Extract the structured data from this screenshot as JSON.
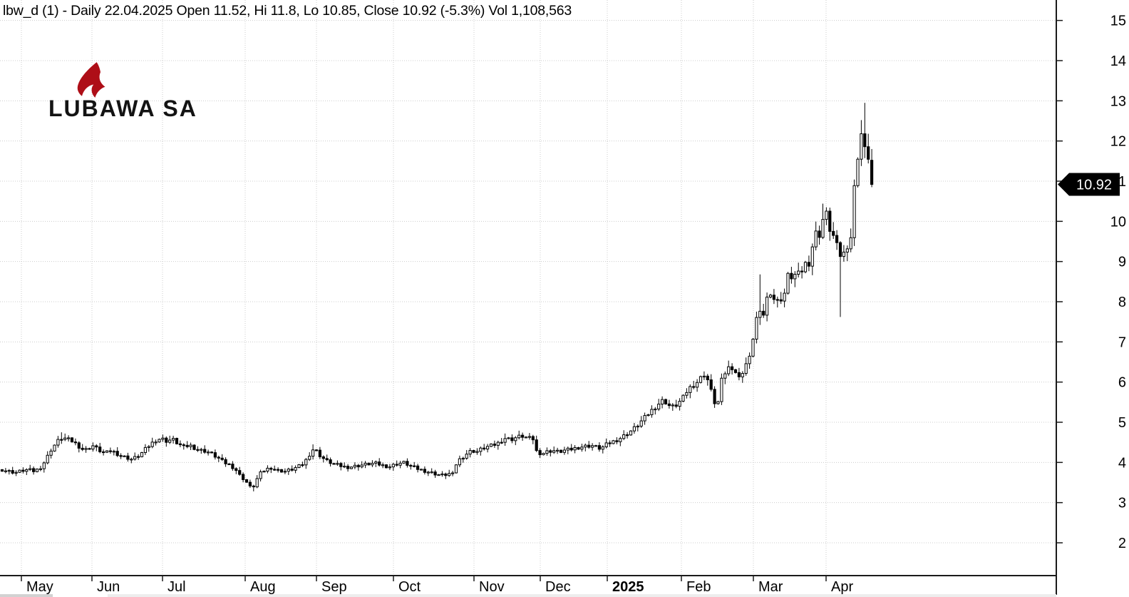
{
  "window": {
    "app": "stock-chart"
  },
  "logo": {
    "text": "LUBAWA SA",
    "icon": "flame-swoosh-icon",
    "icon_color": "#ae0e17",
    "text_color": "#131313"
  },
  "price_marker": {
    "value": "10.92",
    "bg": "#000000",
    "text_color": "#ffffff"
  },
  "chart_data": {
    "type": "candlestick",
    "title": "lbw_d (1) - Daily 22.04.2025 Open 11.52, Hi 11.8, Lo 10.85, Close 10.92 (-5.3%) Vol 1,108,563",
    "symbol": "lbw_d",
    "periodicity": "Daily",
    "last_quote": {
      "date": "22.04.2025",
      "open": 11.52,
      "high": 11.8,
      "low": 10.85,
      "close": 10.92,
      "change_pct": "-5.3%",
      "volume": "1,108,563"
    },
    "grid": "dotted",
    "grid_color": "#cccccc",
    "up_candle": {
      "fill": "#ffffff",
      "stroke": "#000000"
    },
    "down_candle": {
      "fill": "#000000",
      "stroke": "#000000"
    },
    "y_axis_side": "right",
    "y_ticks": [
      15,
      14,
      13,
      12,
      11,
      10,
      9,
      8,
      7,
      6,
      5,
      4,
      3,
      2
    ],
    "y_range": [
      1.25,
      15.5
    ],
    "x_ticks": [
      {
        "label": "May",
        "x": 30,
        "bold": false
      },
      {
        "label": "Jun",
        "x": 129,
        "bold": false
      },
      {
        "label": "Jul",
        "x": 228,
        "bold": false
      },
      {
        "label": "Aug",
        "x": 344,
        "bold": false
      },
      {
        "label": "Sep",
        "x": 444,
        "bold": false
      },
      {
        "label": "Oct",
        "x": 552,
        "bold": false
      },
      {
        "label": "Nov",
        "x": 665,
        "bold": false
      },
      {
        "label": "Dec",
        "x": 758,
        "bold": false
      },
      {
        "label": "2025",
        "x": 852,
        "bold": true
      },
      {
        "label": "Feb",
        "x": 956,
        "bold": false
      },
      {
        "label": "Mar",
        "x": 1057,
        "bold": false
      },
      {
        "label": "Apr",
        "x": 1159,
        "bold": false
      }
    ],
    "anchors": [
      [
        3,
        3.82
      ],
      [
        12,
        3.78
      ],
      [
        22,
        3.75
      ],
      [
        32,
        3.8
      ],
      [
        40,
        3.82
      ],
      [
        48,
        3.78
      ],
      [
        56,
        3.86
      ],
      [
        64,
        4.05
      ],
      [
        70,
        4.28
      ],
      [
        76,
        4.42
      ],
      [
        82,
        4.55
      ],
      [
        88,
        4.62
      ],
      [
        94,
        4.58
      ],
      [
        100,
        4.54
      ],
      [
        106,
        4.47
      ],
      [
        112,
        4.38
      ],
      [
        118,
        4.3
      ],
      [
        124,
        4.35
      ],
      [
        130,
        4.42
      ],
      [
        136,
        4.34
      ],
      [
        142,
        4.27
      ],
      [
        148,
        4.22
      ],
      [
        154,
        4.3
      ],
      [
        160,
        4.26
      ],
      [
        166,
        4.2
      ],
      [
        172,
        4.15
      ],
      [
        178,
        4.12
      ],
      [
        184,
        4.08
      ],
      [
        190,
        4.12
      ],
      [
        197,
        4.2
      ],
      [
        204,
        4.33
      ],
      [
        211,
        4.45
      ],
      [
        218,
        4.55
      ],
      [
        226,
        4.6
      ],
      [
        234,
        4.53
      ],
      [
        242,
        4.58
      ],
      [
        250,
        4.46
      ],
      [
        258,
        4.38
      ],
      [
        266,
        4.43
      ],
      [
        274,
        4.35
      ],
      [
        282,
        4.3
      ],
      [
        290,
        4.28
      ],
      [
        298,
        4.2
      ],
      [
        306,
        4.11
      ],
      [
        314,
        4.0
      ],
      [
        322,
        3.94
      ],
      [
        330,
        3.84
      ],
      [
        337,
        3.66
      ],
      [
        344,
        3.56
      ],
      [
        350,
        3.4
      ],
      [
        354,
        3.34
      ],
      [
        359,
        3.54
      ],
      [
        365,
        3.72
      ],
      [
        372,
        3.82
      ],
      [
        380,
        3.87
      ],
      [
        390,
        3.8
      ],
      [
        400,
        3.78
      ],
      [
        410,
        3.83
      ],
      [
        418,
        3.89
      ],
      [
        425,
        3.96
      ],
      [
        432,
        4.12
      ],
      [
        438,
        4.33
      ],
      [
        444,
        4.28
      ],
      [
        450,
        4.15
      ],
      [
        458,
        4.04
      ],
      [
        466,
        3.98
      ],
      [
        476,
        3.92
      ],
      [
        486,
        3.88
      ],
      [
        496,
        3.9
      ],
      [
        506,
        3.93
      ],
      [
        516,
        3.96
      ],
      [
        526,
        3.98
      ],
      [
        536,
        3.93
      ],
      [
        546,
        3.89
      ],
      [
        556,
        3.96
      ],
      [
        566,
        4.0
      ],
      [
        576,
        3.91
      ],
      [
        586,
        3.84
      ],
      [
        596,
        3.79
      ],
      [
        606,
        3.74
      ],
      [
        614,
        3.7
      ],
      [
        622,
        3.68
      ],
      [
        630,
        3.72
      ],
      [
        636,
        3.7
      ],
      [
        641,
        4.02
      ],
      [
        648,
        4.12
      ],
      [
        655,
        4.22
      ],
      [
        662,
        4.3
      ],
      [
        668,
        4.26
      ],
      [
        675,
        4.33
      ],
      [
        682,
        4.38
      ],
      [
        690,
        4.42
      ],
      [
        697,
        4.46
      ],
      [
        704,
        4.55
      ],
      [
        710,
        4.62
      ],
      [
        716,
        4.56
      ],
      [
        724,
        4.62
      ],
      [
        732,
        4.66
      ],
      [
        740,
        4.61
      ],
      [
        748,
        4.58
      ],
      [
        753,
        4.26
      ],
      [
        760,
        4.22
      ],
      [
        768,
        4.27
      ],
      [
        776,
        4.3
      ],
      [
        784,
        4.26
      ],
      [
        792,
        4.3
      ],
      [
        800,
        4.32
      ],
      [
        808,
        4.36
      ],
      [
        816,
        4.39
      ],
      [
        824,
        4.41
      ],
      [
        832,
        4.42
      ],
      [
        840,
        4.35
      ],
      [
        846,
        4.38
      ],
      [
        852,
        4.46
      ],
      [
        860,
        4.52
      ],
      [
        868,
        4.58
      ],
      [
        876,
        4.67
      ],
      [
        884,
        4.77
      ],
      [
        892,
        4.88
      ],
      [
        900,
        5.03
      ],
      [
        908,
        5.18
      ],
      [
        916,
        5.33
      ],
      [
        924,
        5.46
      ],
      [
        931,
        5.56
      ],
      [
        938,
        5.42
      ],
      [
        945,
        5.38
      ],
      [
        951,
        5.46
      ],
      [
        958,
        5.6
      ],
      [
        964,
        5.78
      ],
      [
        970,
        5.9
      ],
      [
        976,
        5.96
      ],
      [
        982,
        6.08
      ],
      [
        988,
        6.2
      ],
      [
        994,
        6.02
      ],
      [
        1000,
        5.62
      ],
      [
        1006,
        5.33
      ],
      [
        1012,
        6.02
      ],
      [
        1018,
        6.26
      ],
      [
        1025,
        6.42
      ],
      [
        1031,
        6.28
      ],
      [
        1037,
        6.09
      ],
      [
        1043,
        6.31
      ],
      [
        1049,
        6.55
      ],
      [
        1054,
        6.63
      ],
      [
        1058,
        7.4
      ],
      [
        1064,
        7.74
      ],
      [
        1070,
        7.6
      ],
      [
        1076,
        8.08
      ],
      [
        1082,
        8.28
      ],
      [
        1088,
        7.96
      ],
      [
        1094,
        8.05
      ],
      [
        1100,
        8.16
      ],
      [
        1106,
        8.68
      ],
      [
        1112,
        8.6
      ],
      [
        1118,
        8.72
      ],
      [
        1123,
        8.62
      ],
      [
        1128,
        9.0
      ],
      [
        1133,
        8.86
      ],
      [
        1138,
        9.16
      ],
      [
        1143,
        9.78
      ],
      [
        1148,
        9.55
      ],
      [
        1153,
        9.95
      ],
      [
        1158,
        10.28
      ],
      [
        1164,
        9.82
      ],
      [
        1169,
        9.64
      ],
      [
        1175,
        9.33
      ],
      [
        1180,
        9.12
      ],
      [
        1185,
        9.22
      ],
      [
        1189,
        9.42
      ],
      [
        1193,
        9.36
      ],
      [
        1197,
        10.8
      ],
      [
        1201,
        10.86
      ],
      [
        1206,
        12.42
      ],
      [
        1211,
        11.92
      ],
      [
        1216,
        11.58
      ],
      [
        1221,
        11.66
      ],
      [
        1226,
        10.92
      ]
    ],
    "wick_overrides": [
      {
        "x": 88,
        "high": 4.75
      },
      {
        "x": 354,
        "low": 3.28
      },
      {
        "x": 438,
        "high": 4.45
      },
      {
        "x": 710,
        "high": 4.72
      },
      {
        "x": 1068,
        "high": 8.68
      },
      {
        "x": 1153,
        "high": 10.44
      },
      {
        "x": 1158,
        "high": 10.35
      },
      {
        "x": 1180,
        "low": 7.62
      },
      {
        "x": 1206,
        "high": 12.52
      },
      {
        "x": 1211,
        "high": 12.95
      },
      {
        "x": 1216,
        "high": 12.18
      },
      {
        "x": 1221,
        "low": 11.22
      },
      {
        "x": 1226,
        "open": 11.52,
        "high": 11.8,
        "low": 10.85,
        "close": 10.92
      }
    ]
  }
}
